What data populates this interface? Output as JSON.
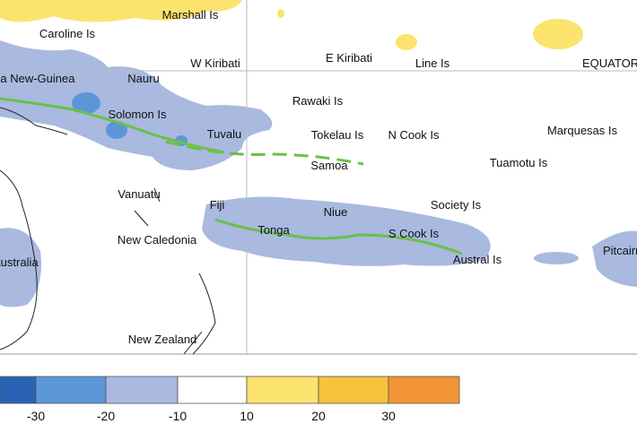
{
  "map": {
    "labels": [
      "Marshall Is",
      "Caroline Is",
      "W Kiribati",
      "E Kiribati",
      "Line Is",
      "EQUATOR",
      "Papua New-Guinea",
      "Nauru",
      "Solomon Is",
      "Rawaki Is",
      "Tuvalu",
      "Tokelau Is",
      "N Cook Is",
      "Marquesas Is",
      "Samoa",
      "Tuamotu Is",
      "Vanuatu",
      "Fiji",
      "Society Is",
      "Niue",
      "New Caledonia",
      "Tonga",
      "S Cook Is",
      "Austral Is",
      "Australia",
      "Pitcairn",
      "New Zealand"
    ],
    "legend": {
      "colors": [
        "#2a63b4",
        "#5b97d8",
        "#a9b9df",
        "#ffffff",
        "#fbe36d",
        "#f8c23a",
        "#f39436"
      ],
      "ticks": [
        -30,
        -20,
        -10,
        10,
        20,
        30
      ]
    }
  }
}
